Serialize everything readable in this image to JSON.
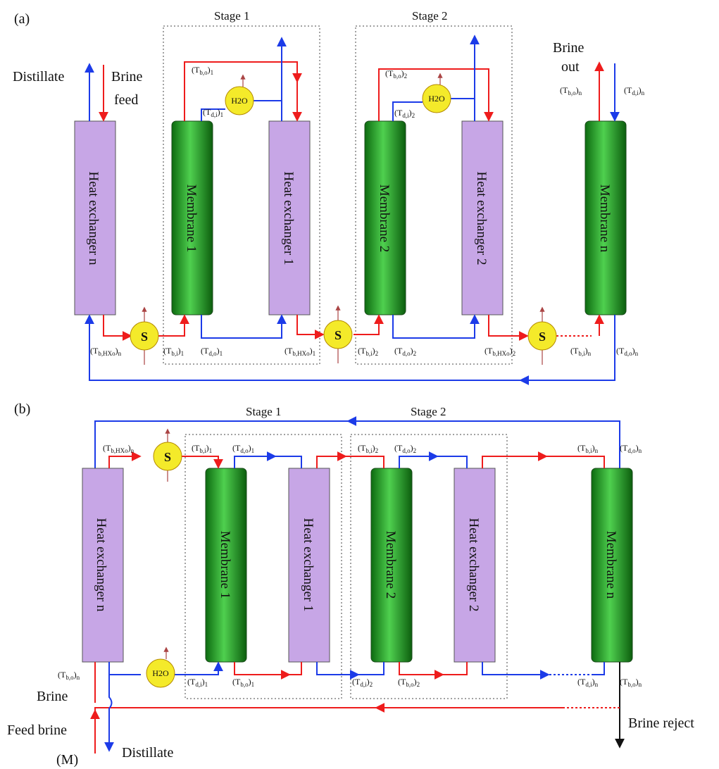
{
  "panels": {
    "a": {
      "label": "(a)",
      "stage1": "Stage 1",
      "stage2": "Stage 2",
      "units": [
        "Heat exchanger n",
        "Membrane 1",
        "Heat exchanger 1",
        "Membrane 2",
        "Heat exchanger 2",
        "Membrane n"
      ],
      "distillate": "Distillate",
      "brine_feed": [
        "Brine",
        "feed"
      ],
      "brine_out": [
        "Brine",
        "out"
      ],
      "top_labels": {
        "tbo1": "(T",
        "tbo1_sub": "b,o",
        "tbo1_i": ")1",
        "tdi1": "(T",
        "tdi1_sub": "d,i",
        "tdi1_i": ")1",
        "tbo2": "(T",
        "tbo2_sub": "b,o",
        "tbo2_i": ")2",
        "tdi2": "(T",
        "tdi2_sub": "d,i",
        "tdi2_i": ")2",
        "tbon": "(T",
        "tbon_sub": "b,o",
        "tbon_i": ")n",
        "tdin": "(T",
        "tdin_sub": "d,i",
        "tdin_i": ")n"
      },
      "bottom_labels": [
        "(Tb,HXo)n",
        "(Tb,i)1",
        "(Td,o)1",
        "(Tb,HXo)1",
        "(Tb,i)2",
        "(Td,o)2",
        "(Tb,HXo)2",
        "(Tb,i)n",
        "(Td,o)n"
      ],
      "s_label": "S",
      "h2o_label": "H2O"
    },
    "b": {
      "label": "(b)",
      "stage1": "Stage 1",
      "stage2": "Stage 2",
      "units": [
        "Heat exchanger n",
        "Membrane 1",
        "Heat exchanger 1",
        "Membrane 2",
        "Heat exchanger 2",
        "Membrane n"
      ],
      "top_labels": [
        "(Tb,HXo)n",
        "(Tb,i)1",
        "(Td,o)1",
        "(Tb,i)2",
        "(Td,o)2",
        "(Tb,i)n",
        "(Td,o)n"
      ],
      "bottom_labels": [
        "(Tb,o)n",
        "(Td,i)1",
        "(Tb,o)1",
        "(Td,i)2",
        "(Tb,o)2",
        "(Td,i)n",
        "(Tb,o)n"
      ],
      "brine": "Brine",
      "feed_brine": "Feed brine",
      "m_label": "(M)",
      "distillate": "Distillate",
      "brine_reject": "Brine reject",
      "s_label": "S",
      "h2o_label": "H2O"
    }
  },
  "colors": {
    "heat_exchanger": "#c7a6e6",
    "membrane": "#2ea82e",
    "brine_line": "#ee1c1c",
    "distillate_line": "#1c3be8",
    "node": "#f4ea2a"
  }
}
